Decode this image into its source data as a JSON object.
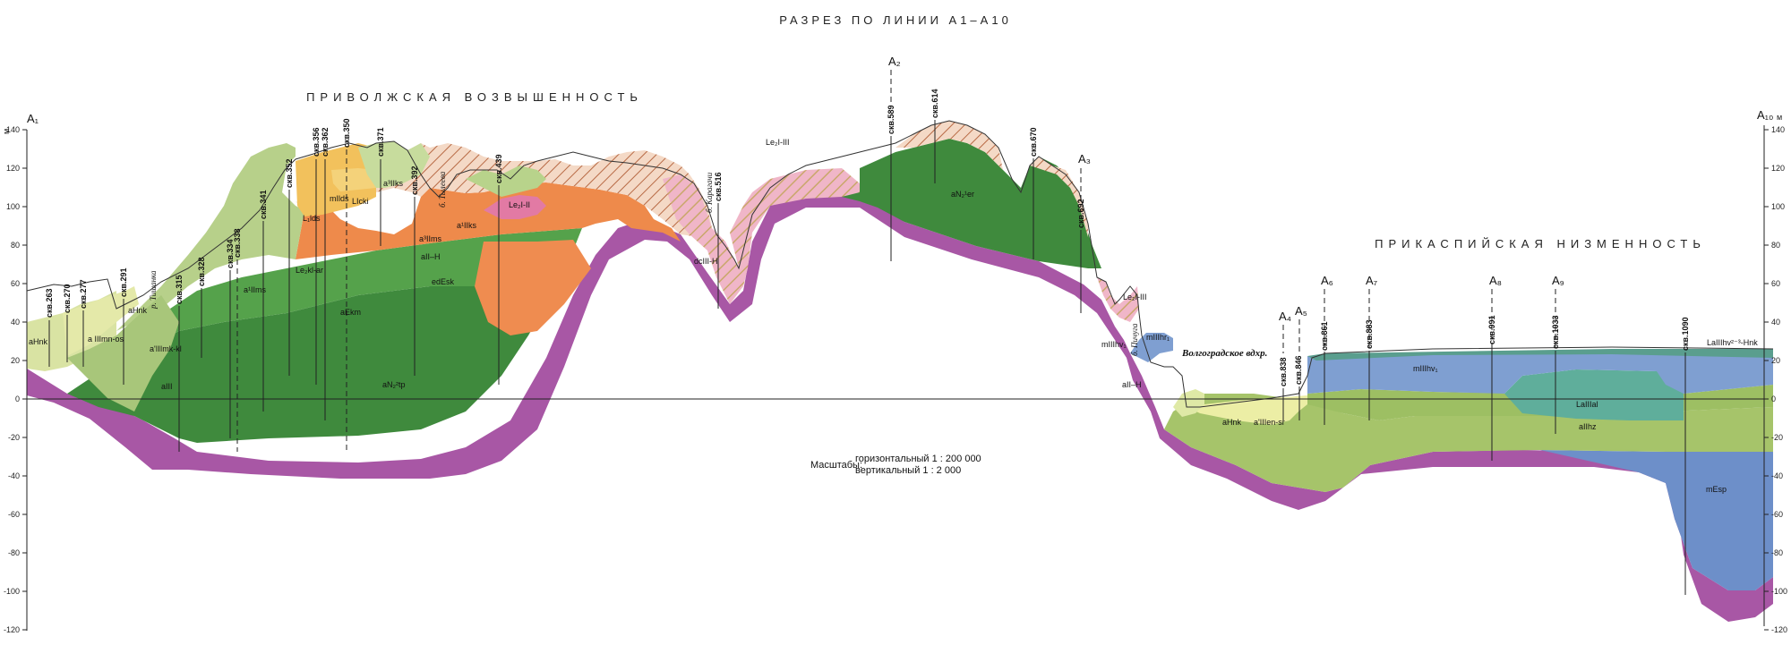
{
  "title": "РАЗРЕЗ ПО ЛИНИИ А1–А10",
  "regions": {
    "upland": "ПРИВОЛЖСКАЯ ВОЗВЫШЕННОСТЬ",
    "lowland": "ПРИКАСПИЙСКАЯ НИЗМЕННОСТЬ"
  },
  "scale": {
    "label": "Масштабы:",
    "horizontal": "горизонтальный 1 : 200 000",
    "vertical": "вертикальный 1 : 2 000"
  },
  "axis": {
    "unit": "м",
    "ticks": [
      "140",
      "120",
      "100",
      "80",
      "60",
      "40",
      "20",
      "0",
      "-20",
      "-40",
      "-60",
      "-80",
      "-100",
      "-120"
    ],
    "values": [
      140,
      120,
      100,
      80,
      60,
      40,
      20,
      0,
      -20,
      -40,
      -60,
      -80,
      -100,
      -120
    ]
  },
  "points": [
    {
      "id": "A1",
      "label": "A₁"
    },
    {
      "id": "A2",
      "label": "A₂"
    },
    {
      "id": "A3",
      "label": "A₃"
    },
    {
      "id": "A4",
      "label": "A₄"
    },
    {
      "id": "A5",
      "label": "A₅"
    },
    {
      "id": "A6",
      "label": "A₆"
    },
    {
      "id": "A7",
      "label": "A₇"
    },
    {
      "id": "A8",
      "label": "A₈"
    },
    {
      "id": "A9",
      "label": "A₉"
    },
    {
      "id": "A10",
      "label": "A₁₀"
    }
  ],
  "wells": [
    "скв.263",
    "скв.270",
    "скв.277",
    "скв.291",
    "скв.315",
    "скв.328",
    "скв.334",
    "скв.338",
    "скв.341",
    "скв.352",
    "скв.356",
    "скв.362",
    "скв.350",
    "скв.371",
    "скв.392",
    "скв.439",
    "скв.516",
    "скв.589",
    "скв.614",
    "скв.670",
    "скв.692",
    "скв.838",
    "скв.846",
    "скв.861",
    "скв.883",
    "скв.991",
    "скв.1033",
    "скв.1090"
  ],
  "rivers": [
    "р. Тишанка",
    "б. Тылеева",
    "б. Карагачи",
    "б. Пичуга",
    "Волгоградское вдхр."
  ],
  "units": [
    "aHnk",
    "a IIImn-os",
    "aHnk",
    "a'IIImk-kl",
    "aIII",
    "a¹IIms",
    "L₁lds",
    "mIlds",
    "LIcki",
    "Le₂kl-ar",
    "a³IIks",
    "a³IIms",
    "aII–H",
    "aEkm",
    "aN₂²tp",
    "edEsk",
    "a¹IIks",
    "Le₂I-II",
    "Le₂I-III",
    "dcIII-H",
    "aN₂¹er",
    "Le₂I-III",
    "mIIIhv₁",
    "mIIIhr₁",
    "aII–H",
    "aHnk",
    "a'IIIen-sr",
    "mIIIhv₁",
    "LaIIIal",
    "aIIhz",
    "mEsp",
    "LaIIIhv²⁻³-Hnk"
  ]
}
